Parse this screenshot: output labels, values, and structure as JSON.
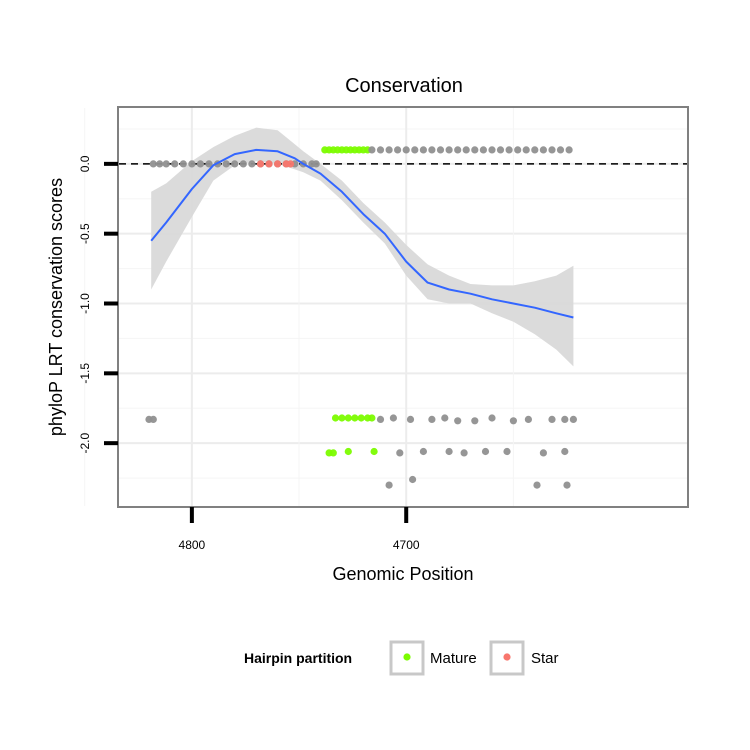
{
  "chart_data": {
    "type": "scatter",
    "title": "Conservation",
    "xlabel": "Genomic Position",
    "ylabel": "phyloP LRT conservation scores",
    "x_reversed": true,
    "xlim": [
      4834,
      4569
    ],
    "ylim": [
      -2.45,
      0.4
    ],
    "x_ticks": [
      4800,
      4700
    ],
    "x_tick_labels": [
      "4800",
      "4700"
    ],
    "y_ticks": [
      0.0,
      -0.5,
      -1.0,
      -1.5,
      -2.0
    ],
    "y_tick_labels": [
      "0.0",
      "-0.5",
      "-1.0",
      "-1.5",
      "-2.0"
    ],
    "reference_line": {
      "y": 0,
      "style": "dashed"
    },
    "legend": {
      "title": "Hairpin partition",
      "position": "bottom",
      "entries": [
        {
          "label": "Mature",
          "color": "#7cfc00"
        },
        {
          "label": "Star",
          "color": "#f8766d"
        }
      ]
    },
    "colors": {
      "other": "#909090",
      "mature": "#7cfc00",
      "star": "#f8766d",
      "smooth": "#3366ff",
      "band": "#d9d9d9"
    },
    "smooth_line": {
      "x": [
        4819,
        4812,
        4800,
        4790,
        4780,
        4770,
        4760,
        4752,
        4748,
        4740,
        4730,
        4720,
        4710,
        4700,
        4690,
        4680,
        4670,
        4660,
        4650,
        4640,
        4630,
        4622
      ],
      "y": [
        -0.55,
        -0.42,
        -0.18,
        -0.01,
        0.07,
        0.1,
        0.09,
        0.04,
        0.0,
        -0.07,
        -0.2,
        -0.36,
        -0.5,
        -0.7,
        -0.85,
        -0.9,
        -0.93,
        -0.97,
        -1.0,
        -1.03,
        -1.07,
        -1.1
      ],
      "lower": [
        -0.9,
        -0.7,
        -0.38,
        -0.12,
        -0.01,
        0.02,
        0.0,
        -0.04,
        -0.06,
        -0.12,
        -0.26,
        -0.42,
        -0.57,
        -0.8,
        -0.97,
        -1.0,
        -1.0,
        -1.07,
        -1.13,
        -1.22,
        -1.33,
        -1.45
      ],
      "upper": [
        -0.2,
        -0.14,
        0.02,
        0.12,
        0.2,
        0.26,
        0.24,
        0.14,
        0.09,
        0.0,
        -0.12,
        -0.28,
        -0.42,
        -0.58,
        -0.72,
        -0.8,
        -0.86,
        -0.87,
        -0.87,
        -0.84,
        -0.8,
        -0.73
      ]
    },
    "series": [
      {
        "name": "other",
        "points": [
          [
            4818,
            0
          ],
          [
            4815,
            0
          ],
          [
            4812,
            0
          ],
          [
            4808,
            0
          ],
          [
            4804,
            0
          ],
          [
            4800,
            0
          ],
          [
            4796,
            0
          ],
          [
            4792,
            0
          ],
          [
            4788,
            0
          ],
          [
            4784,
            0
          ],
          [
            4780,
            0
          ],
          [
            4776,
            0
          ],
          [
            4772,
            0
          ],
          [
            4768,
            0
          ],
          [
            4764,
            0
          ],
          [
            4760,
            0
          ],
          [
            4756,
            0
          ],
          [
            4752,
            0
          ],
          [
            4748,
            0
          ],
          [
            4744,
            0
          ],
          [
            4742,
            0
          ]
        ]
      },
      {
        "name": "star",
        "points": [
          [
            4768,
            0
          ],
          [
            4764,
            0
          ],
          [
            4760,
            0
          ],
          [
            4756,
            0
          ],
          [
            4754,
            0
          ]
        ]
      },
      {
        "name": "mature",
        "points": [
          [
            4738,
            0.1
          ],
          [
            4736,
            0.1
          ],
          [
            4734,
            0.1
          ],
          [
            4732,
            0.1
          ],
          [
            4730,
            0.1
          ],
          [
            4728,
            0.1
          ],
          [
            4726,
            0.1
          ],
          [
            4724,
            0.1
          ],
          [
            4722,
            0.1
          ],
          [
            4720,
            0.1
          ],
          [
            4718,
            0.1
          ],
          [
            4733,
            -1.82
          ],
          [
            4730,
            -1.82
          ],
          [
            4727,
            -1.82
          ],
          [
            4724,
            -1.82
          ],
          [
            4721,
            -1.82
          ],
          [
            4718,
            -1.82
          ],
          [
            4716,
            -1.82
          ],
          [
            4736,
            -2.07
          ],
          [
            4734,
            -2.07
          ],
          [
            4727,
            -2.06
          ],
          [
            4715,
            -2.06
          ]
        ]
      },
      {
        "name": "other",
        "points": [
          [
            4716,
            0.1
          ],
          [
            4712,
            0.1
          ],
          [
            4708,
            0.1
          ],
          [
            4704,
            0.1
          ],
          [
            4700,
            0.1
          ],
          [
            4696,
            0.1
          ],
          [
            4692,
            0.1
          ],
          [
            4688,
            0.1
          ],
          [
            4684,
            0.1
          ],
          [
            4680,
            0.1
          ],
          [
            4676,
            0.1
          ],
          [
            4672,
            0.1
          ],
          [
            4668,
            0.1
          ],
          [
            4664,
            0.1
          ],
          [
            4660,
            0.1
          ],
          [
            4656,
            0.1
          ],
          [
            4652,
            0.1
          ],
          [
            4648,
            0.1
          ],
          [
            4644,
            0.1
          ],
          [
            4640,
            0.1
          ],
          [
            4636,
            0.1
          ],
          [
            4632,
            0.1
          ],
          [
            4628,
            0.1
          ],
          [
            4624,
            0.1
          ],
          [
            4820,
            -1.83
          ],
          [
            4818,
            -1.83
          ],
          [
            4712,
            -1.83
          ],
          [
            4706,
            -1.82
          ],
          [
            4698,
            -1.83
          ],
          [
            4688,
            -1.83
          ],
          [
            4682,
            -1.82
          ],
          [
            4676,
            -1.84
          ],
          [
            4668,
            -1.84
          ],
          [
            4660,
            -1.82
          ],
          [
            4650,
            -1.84
          ],
          [
            4643,
            -1.83
          ],
          [
            4632,
            -1.83
          ],
          [
            4626,
            -1.83
          ],
          [
            4622,
            -1.83
          ],
          [
            4703,
            -2.07
          ],
          [
            4692,
            -2.06
          ],
          [
            4680,
            -2.06
          ],
          [
            4673,
            -2.07
          ],
          [
            4663,
            -2.06
          ],
          [
            4653,
            -2.06
          ],
          [
            4636,
            -2.07
          ],
          [
            4626,
            -2.06
          ],
          [
            4708,
            -2.3
          ],
          [
            4697,
            -2.26
          ],
          [
            4639,
            -2.3
          ],
          [
            4625,
            -2.3
          ]
        ]
      }
    ]
  }
}
